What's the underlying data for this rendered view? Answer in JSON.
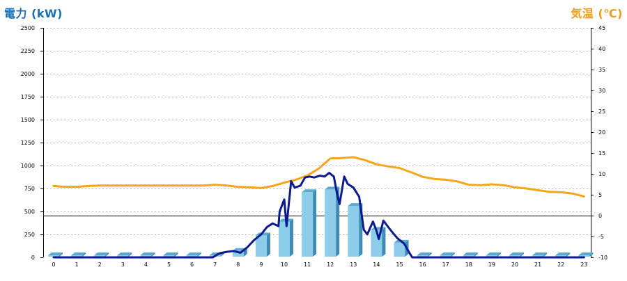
{
  "left_axis_title": "電力 (kW)",
  "right_axis_title": "気温 (℃)",
  "colors": {
    "power_title": "#1a6fb4",
    "temp_title": "#f39a1e",
    "power_line": "#0b1a8c",
    "temp_line": "#f6a51c",
    "bar_face": "#8ccde9",
    "bar_side": "#3f8bb3",
    "bar_top": "#5ea9cf",
    "grid": "#b8b8b8",
    "axis": "#000000"
  },
  "chart_data": {
    "type": "bar",
    "hours": [
      "0",
      "1",
      "2",
      "3",
      "4",
      "5",
      "6",
      "7",
      "8",
      "9",
      "10",
      "11",
      "12",
      "13",
      "14",
      "15",
      "16",
      "17",
      "18",
      "19",
      "20",
      "21",
      "22",
      "23"
    ],
    "y_left": {
      "min": 0,
      "max": 2500,
      "ticks": [
        "0",
        "250",
        "500",
        "750",
        "1000",
        "1250",
        "1500",
        "1750",
        "2000",
        "2250",
        "2500"
      ]
    },
    "y_right": {
      "min": -10,
      "max": 45,
      "ticks": [
        "-10",
        "-5",
        "0",
        "5",
        "10",
        "15",
        "20",
        "25",
        "30",
        "35",
        "40",
        "45"
      ]
    },
    "grid": true,
    "series": [
      {
        "kind": "bar",
        "axis": "left",
        "values": [
          0,
          0,
          0,
          0,
          0,
          0,
          0,
          0,
          70,
          240,
          390,
          710,
          740,
          560,
          300,
          160,
          0,
          0,
          0,
          0,
          0,
          0,
          0,
          0
        ]
      },
      {
        "kind": "line",
        "axis": "left",
        "points": [
          [
            0,
            0
          ],
          [
            1,
            0
          ],
          [
            2,
            0
          ],
          [
            3,
            0
          ],
          [
            4,
            0
          ],
          [
            5,
            0
          ],
          [
            6,
            0
          ],
          [
            6.9,
            0
          ],
          [
            7.2,
            45
          ],
          [
            7.5,
            60
          ],
          [
            7.8,
            70
          ],
          [
            8.1,
            50
          ],
          [
            8.4,
            110
          ],
          [
            8.7,
            190
          ],
          [
            9.0,
            250
          ],
          [
            9.25,
            330
          ],
          [
            9.5,
            370
          ],
          [
            9.75,
            340
          ],
          [
            9.8,
            500
          ],
          [
            10.0,
            630
          ],
          [
            10.1,
            340
          ],
          [
            10.3,
            830
          ],
          [
            10.45,
            760
          ],
          [
            10.7,
            780
          ],
          [
            10.9,
            870
          ],
          [
            11.1,
            880
          ],
          [
            11.3,
            870
          ],
          [
            11.55,
            890
          ],
          [
            11.75,
            880
          ],
          [
            11.95,
            920
          ],
          [
            12.15,
            880
          ],
          [
            12.3,
            680
          ],
          [
            12.4,
            580
          ],
          [
            12.6,
            880
          ],
          [
            12.75,
            800
          ],
          [
            13.0,
            760
          ],
          [
            13.25,
            660
          ],
          [
            13.45,
            300
          ],
          [
            13.6,
            250
          ],
          [
            13.85,
            390
          ],
          [
            14.0,
            290
          ],
          [
            14.1,
            200
          ],
          [
            14.3,
            400
          ],
          [
            14.6,
            300
          ],
          [
            14.9,
            210
          ],
          [
            15.2,
            150
          ],
          [
            15.45,
            40
          ],
          [
            15.55,
            0
          ],
          [
            16,
            0
          ],
          [
            17,
            0
          ],
          [
            18,
            0
          ],
          [
            19,
            0
          ],
          [
            20,
            0
          ],
          [
            21,
            0
          ],
          [
            22,
            0
          ],
          [
            23,
            0
          ]
        ]
      },
      {
        "kind": "line",
        "axis": "right",
        "points": [
          [
            0,
            7.1
          ],
          [
            0.5,
            6.9
          ],
          [
            1,
            6.9
          ],
          [
            1.5,
            7.1
          ],
          [
            2,
            7.2
          ],
          [
            3,
            7.2
          ],
          [
            4,
            7.2
          ],
          [
            5,
            7.2
          ],
          [
            6,
            7.2
          ],
          [
            6.5,
            7.2
          ],
          [
            7,
            7.4
          ],
          [
            7.5,
            7.2
          ],
          [
            8,
            6.9
          ],
          [
            8.5,
            6.8
          ],
          [
            9,
            6.6
          ],
          [
            9.5,
            7.1
          ],
          [
            10,
            7.9
          ],
          [
            10.5,
            8.6
          ],
          [
            11,
            9.6
          ],
          [
            11.5,
            11.3
          ],
          [
            12,
            13.7
          ],
          [
            12.5,
            13.8
          ],
          [
            13,
            14.0
          ],
          [
            13.5,
            13.3
          ],
          [
            14,
            12.3
          ],
          [
            14.5,
            11.8
          ],
          [
            15,
            11.4
          ],
          [
            15.5,
            10.4
          ],
          [
            16,
            9.3
          ],
          [
            16.5,
            8.8
          ],
          [
            17,
            8.6
          ],
          [
            17.5,
            8.2
          ],
          [
            18,
            7.4
          ],
          [
            18.5,
            7.3
          ],
          [
            19,
            7.5
          ],
          [
            19.5,
            7.3
          ],
          [
            20,
            6.8
          ],
          [
            20.5,
            6.5
          ],
          [
            21,
            6.1
          ],
          [
            21.5,
            5.7
          ],
          [
            22,
            5.6
          ],
          [
            22.5,
            5.3
          ],
          [
            23,
            4.6
          ]
        ]
      }
    ]
  }
}
